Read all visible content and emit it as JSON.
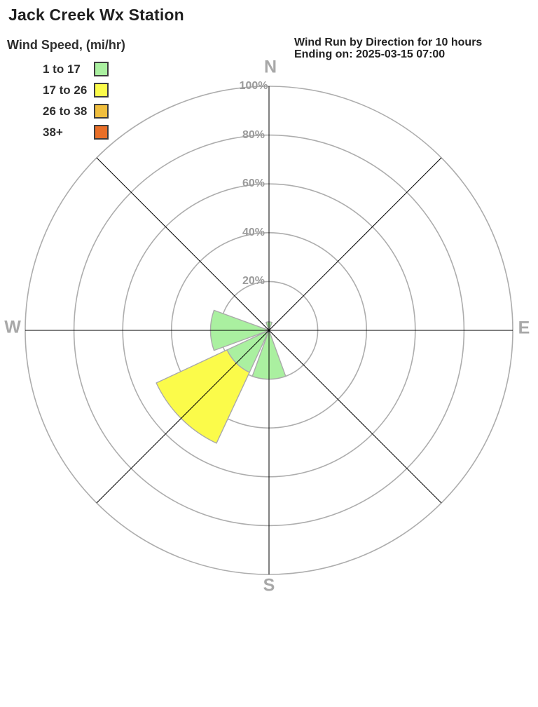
{
  "title": "Jack Creek Wx Station",
  "header": {
    "line1": "Wind Run by Direction for 10 hours",
    "line2": "Ending on: 2025-03-15 07:00"
  },
  "legend": {
    "title": "Wind Speed, (mi/hr)",
    "items": [
      {
        "label": "1 to 17",
        "color": "#aaf0a0"
      },
      {
        "label": "17 to 26",
        "color": "#fbfb4a"
      },
      {
        "label": "26 to 38",
        "color": "#f0be3d"
      },
      {
        "label": "38+",
        "color": "#e96f28"
      }
    ]
  },
  "chart_data": {
    "type": "windrose",
    "title": "Wind Run by Direction for 10 hours",
    "subtitle": "Ending on: 2025-03-15 07:00",
    "units": "percent of wind run",
    "directions": [
      "N",
      "NE",
      "E",
      "SE",
      "S",
      "SW",
      "W",
      "NW"
    ],
    "series": [
      {
        "name": "1 to 17",
        "color": "#aaf0a0",
        "values": [
          3.5,
          0,
          0,
          0,
          20,
          19,
          24,
          0
        ]
      },
      {
        "name": "17 to 26",
        "color": "#fbfb4a",
        "values": [
          0,
          0,
          0,
          0,
          0,
          32,
          0,
          0
        ]
      },
      {
        "name": "26 to 38",
        "color": "#f0be3d",
        "values": [
          0,
          0,
          0,
          0,
          0,
          0,
          0,
          0
        ]
      },
      {
        "name": "38+",
        "color": "#e96f28",
        "values": [
          0,
          0,
          0,
          0,
          0,
          0,
          0,
          0
        ]
      }
    ],
    "rings_percent": [
      20,
      40,
      60,
      80,
      100
    ],
    "ring_labels": [
      "20%",
      "40%",
      "60%",
      "80%",
      "100%"
    ],
    "axis_max_percent": 100,
    "compass_labels": {
      "n": "N",
      "e": "E",
      "s": "S",
      "w": "W"
    },
    "petal_half_width_deg": 20,
    "grid_on": true,
    "grid_color": "#adadad",
    "axis_line_color": "#000000",
    "petal_outline_color": "#aaaaaa"
  }
}
